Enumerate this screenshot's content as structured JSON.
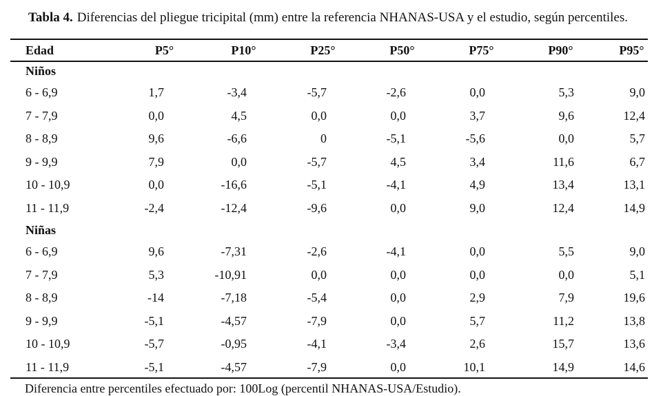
{
  "caption": {
    "label": "Tabla 4.",
    "text": "Diferencias del pliegue tricipital (mm) entre la referencia NHANAS-USA y el estudio, según percentiles."
  },
  "table": {
    "headers": [
      "Edad",
      "P5°",
      "P10°",
      "P25°",
      "P50°",
      "P75°",
      "P90°",
      "P95°"
    ],
    "groups": [
      {
        "label": "Niños",
        "rows": [
          [
            "6 - 6,9",
            "1,7",
            "-3,4",
            "-5,7",
            "-2,6",
            "0,0",
            "5,3",
            "9,0"
          ],
          [
            "7 - 7,9",
            "0,0",
            "4,5",
            "0,0",
            "0,0",
            "3,7",
            "9,6",
            "12,4"
          ],
          [
            "8 - 8,9",
            "9,6",
            "-6,6",
            "0",
            "-5,1",
            "-5,6",
            "0,0",
            "5,7"
          ],
          [
            "9 - 9,9",
            "7,9",
            "0,0",
            "-5,7",
            "4,5",
            "3,4",
            "11,6",
            "6,7"
          ],
          [
            "10 - 10,9",
            "0,0",
            "-16,6",
            "-5,1",
            "-4,1",
            "4,9",
            "13,4",
            "13,1"
          ],
          [
            "11 - 11,9",
            "-2,4",
            "-12,4",
            "-9,6",
            "0,0",
            "9,0",
            "12,4",
            "14,9"
          ]
        ]
      },
      {
        "label": "Niñas",
        "rows": [
          [
            "6 - 6,9",
            "9,6",
            "-7,31",
            "-2,6",
            "-4,1",
            "0,0",
            "5,5",
            "9,0"
          ],
          [
            "7 - 7,9",
            "5,3",
            "-10,91",
            "0,0",
            "0,0",
            "0,0",
            "0,0",
            "5,1"
          ],
          [
            "8 - 8,9",
            "-14",
            "-7,18",
            "-5,4",
            "0,0",
            "2,9",
            "7,9",
            "19,6"
          ],
          [
            "9 - 9,9",
            "-5,1",
            "-4,57",
            "-7,9",
            "0,0",
            "5,7",
            "11,2",
            "13,8"
          ],
          [
            "10 - 10,9",
            "-5,7",
            "-0,95",
            "-4,1",
            "-3,4",
            "2,6",
            "15,7",
            "13,6"
          ],
          [
            "11 - 11,9",
            "-5,1",
            "-4,57",
            "-7,9",
            "0,0",
            "10,1",
            "14,9",
            "14,6"
          ]
        ]
      }
    ]
  },
  "footnote": "Diferencia entre percentiles efectuado por: 100Log (percentil NHANAS-USA/Estudio)."
}
